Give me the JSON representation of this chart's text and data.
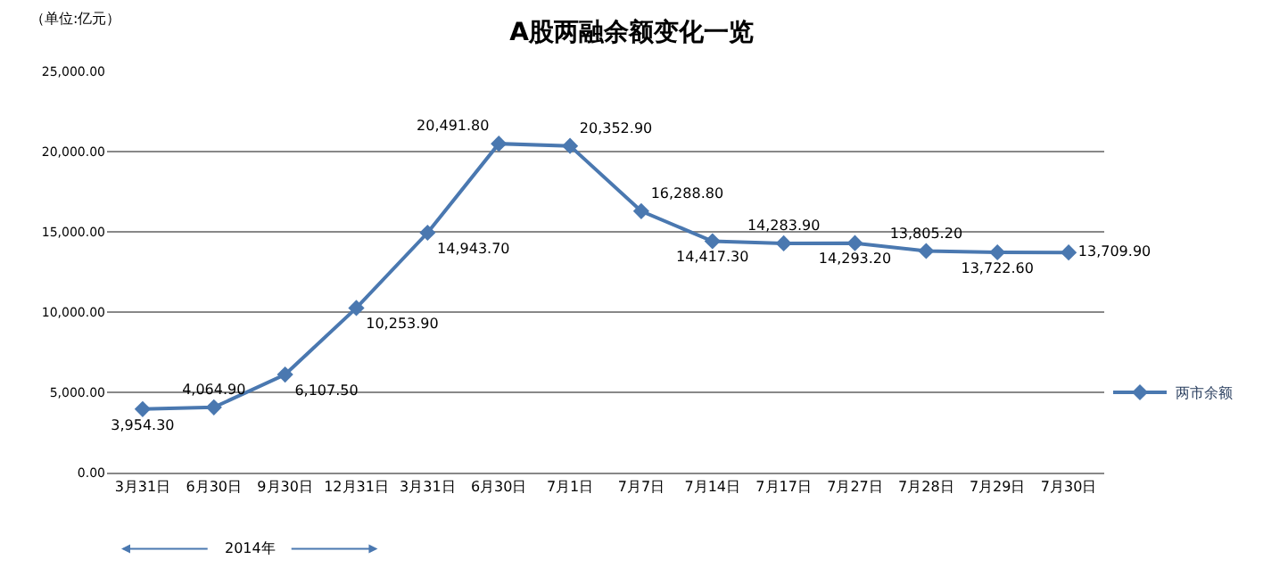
{
  "chart_data": {
    "type": "line",
    "title": "A股两融余额变化一览",
    "ylabel": "（单位:亿元）",
    "categories": [
      "3月31日",
      "6月30日",
      "9月30日",
      "12月31日",
      "3月31日",
      "6月30日",
      "7月1日",
      "7月7日",
      "7月14日",
      "7月17日",
      "7月27日",
      "7月28日",
      "7月29日",
      "7月30日"
    ],
    "series": [
      {
        "name": "两市余额",
        "color": "#4a78b0",
        "values": [
          3954.3,
          4064.9,
          6107.5,
          10253.9,
          14943.7,
          20491.8,
          20352.9,
          16288.8,
          14417.3,
          14283.9,
          14293.2,
          13805.2,
          13722.6,
          13709.9
        ],
        "value_labels": [
          "3,954.30",
          "4,064.90",
          "6,107.50",
          "10,253.90",
          "14,943.70",
          "20,491.80",
          "20,352.90",
          "16,288.80",
          "14,417.30",
          "14,283.90",
          "14,293.20",
          "13,805.20",
          "13,722.60",
          "13,709.90"
        ]
      }
    ],
    "annotations": [
      "2014年"
    ],
    "ylim": [
      0,
      25000
    ],
    "yticks": [
      {
        "value": 0,
        "label": "0.00"
      },
      {
        "value": 5000,
        "label": "5,000.00"
      },
      {
        "value": 10000,
        "label": "10,000.00"
      },
      {
        "value": 15000,
        "label": "15,000.00"
      },
      {
        "value": 20000,
        "label": "20,000.00"
      },
      {
        "value": 25000,
        "label": "25,000.00"
      }
    ],
    "grid": "y",
    "legend": "right",
    "marker": "diamond",
    "line_style": "solid"
  }
}
